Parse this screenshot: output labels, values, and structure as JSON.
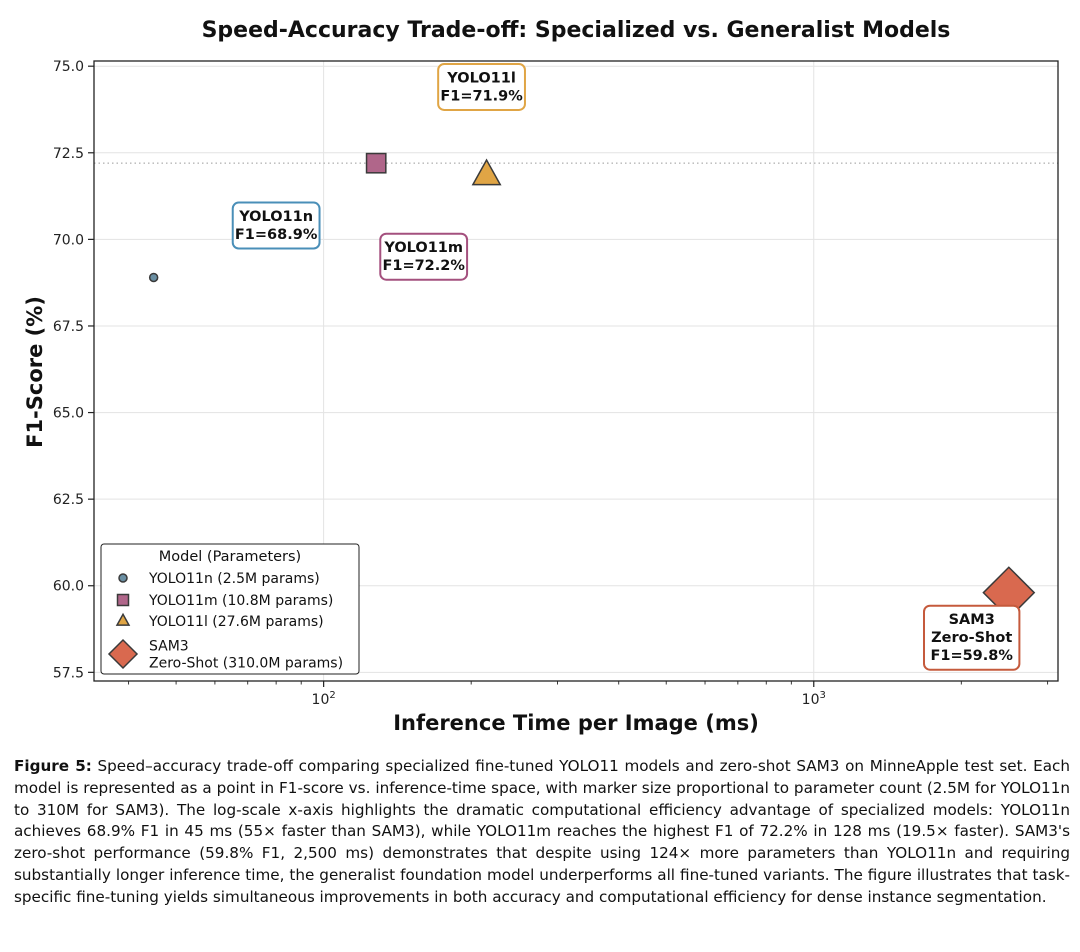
{
  "chart_data": {
    "type": "scatter",
    "title": "Speed-Accuracy Trade-off: Specialized vs. Generalist Models",
    "xlabel": "Inference Time per Image (ms)",
    "ylabel": "F1-Score (%)",
    "xscale": "log",
    "xlim": [
      34,
      3150
    ],
    "ylim": [
      57.25,
      75.15
    ],
    "xticks": [
      {
        "value": 100,
        "label": "10²"
      },
      {
        "value": 1000,
        "label": "10³"
      }
    ],
    "yticks": [
      {
        "value": 57.5,
        "label": "57.5"
      },
      {
        "value": 60.0,
        "label": "60.0"
      },
      {
        "value": 62.5,
        "label": "62.5"
      },
      {
        "value": 65.0,
        "label": "65.0"
      },
      {
        "value": 67.5,
        "label": "67.5"
      },
      {
        "value": 70.0,
        "label": "70.0"
      },
      {
        "value": 72.5,
        "label": "72.5"
      },
      {
        "value": 75.0,
        "label": "75.0"
      }
    ],
    "grid": true,
    "reference_line": {
      "y": 72.2,
      "style": "dotted"
    },
    "legend": {
      "title": "Model (Parameters)",
      "placement": "lower-left",
      "entries": [
        "YOLO11n (2.5M params)",
        "YOLO11m (10.8M params)",
        "YOLO11l (27.6M params)",
        "SAM3\nZero-Shot (310.0M params)"
      ]
    },
    "series": [
      {
        "name": "YOLO11n (2.5M params)",
        "x": 45,
        "y": 68.9,
        "params_m": 2.5,
        "marker": "circle",
        "color": "#6a8fa3"
      },
      {
        "name": "YOLO11m (10.8M params)",
        "x": 128,
        "y": 72.2,
        "params_m": 10.8,
        "marker": "square",
        "color": "#b0668a"
      },
      {
        "name": "YOLO11l (27.6M params)",
        "x": 215,
        "y": 71.85,
        "params_m": 27.6,
        "marker": "triangle",
        "color": "#e0a545"
      },
      {
        "name": "SAM3\nZero-Shot (310.0M params)",
        "x": 2500,
        "y": 59.8,
        "params_m": 310.0,
        "marker": "diamond",
        "color": "#d9694f"
      }
    ],
    "annotations": [
      {
        "text": "YOLO11n\nF1=68.9%",
        "x": 80,
        "y": 70.4,
        "border": "#4a8fb8"
      },
      {
        "text": "YOLO11m\nF1=72.2%",
        "x": 160,
        "y": 69.5,
        "border": "#a4507e"
      },
      {
        "text": "YOLO11l\nF1=71.9%",
        "x": 210,
        "y": 74.4,
        "border": "#e0a545"
      },
      {
        "text": "SAM3\nZero-Shot\nF1=59.8%",
        "x": 2100,
        "y": 58.5,
        "border": "#c55a3c"
      }
    ]
  },
  "caption": {
    "label": "Figure 5:",
    "text": " Speed–accuracy trade-off comparing specialized fine-tuned YOLO11 models and zero-shot SAM3 on MinneApple test set. Each model is represented as a point in F1-score vs. inference-time space, with marker size proportional to parameter count (2.5M for YOLO11n to 310M for SAM3). The log-scale x-axis highlights the dramatic computational efficiency advantage of specialized models: YOLO11n achieves 68.9% F1 in 45 ms (55× faster than SAM3), while YOLO11m reaches the highest F1 of 72.2% in 128 ms (19.5× faster). SAM3's zero-shot performance (59.8% F1, 2,500 ms) demonstrates that despite using 124× more parameters than YOLO11n and requiring substantially longer inference time, the generalist foundation model underperforms all fine-tuned variants. The figure illustrates that task-specific fine-tuning yields simultaneous improvements in both accuracy and computational efficiency for dense instance segmentation."
  }
}
